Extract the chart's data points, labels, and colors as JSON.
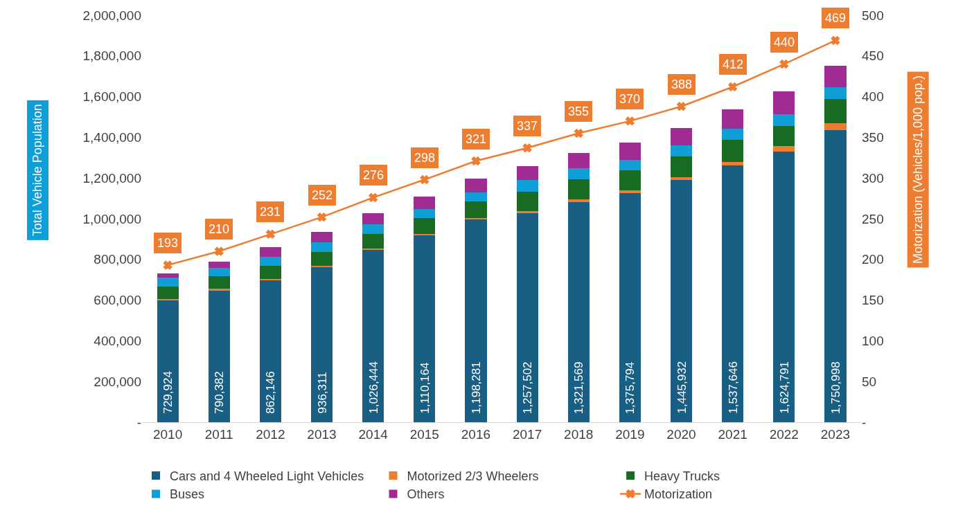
{
  "chart_data": {
    "type": "bar",
    "stacked": true,
    "ylabel": "Total Vehicle Population",
    "y2label": "Motorization (Vehicles/1,000 pop.)",
    "categories": [
      "2010",
      "2011",
      "2012",
      "2013",
      "2014",
      "2015",
      "2016",
      "2017",
      "2018",
      "2019",
      "2020",
      "2021",
      "2022",
      "2023"
    ],
    "series": [
      {
        "name": "Cars and 4 Wheeled Light Vehicles",
        "color": "#195e83",
        "values": [
          600000,
          647000,
          700000,
          763000,
          847000,
          917000,
          997000,
          1027000,
          1083000,
          1127000,
          1190000,
          1263000,
          1330000,
          1437000
        ]
      },
      {
        "name": "Motorized 2/3 Wheelers",
        "color": "#ed7d31",
        "values": [
          5000,
          8000,
          5000,
          5000,
          7000,
          8000,
          8000,
          10000,
          12000,
          13000,
          15000,
          17000,
          27000,
          33000
        ]
      },
      {
        "name": "Heavy Trucks",
        "color": "#196b24",
        "values": [
          60000,
          63000,
          63000,
          70000,
          70000,
          78000,
          80000,
          97000,
          100000,
          98000,
          100000,
          108000,
          100000,
          120000
        ]
      },
      {
        "name": "Buses",
        "color": "#0f9ed5",
        "values": [
          45000,
          40000,
          45000,
          45000,
          48000,
          45000,
          45000,
          55000,
          52000,
          52000,
          57000,
          55000,
          58000,
          57000
        ]
      },
      {
        "name": "Others",
        "color": "#a02b93",
        "values": [
          19924,
          32382,
          49146,
          53311,
          54444,
          62164,
          68281,
          68502,
          74569,
          85794,
          83932,
          94646,
          109791,
          103998
        ]
      },
      {
        "name": "Motorization",
        "type": "line",
        "axis": "y2",
        "color": "#ed7d31",
        "marker": "cross",
        "values": [
          193,
          210,
          231,
          252,
          276,
          298,
          321,
          337,
          355,
          370,
          388,
          412,
          440,
          469
        ],
        "value_labels": [
          "193",
          "210",
          "231",
          "252",
          "276",
          "298",
          "321",
          "337",
          "355",
          "370",
          "388",
          "412",
          "440",
          "469"
        ]
      }
    ],
    "totals": [
      "729,924",
      "790,382",
      "862,146",
      "936,311",
      "1,026,444",
      "1,110,164",
      "1,198,281",
      "1,257,502",
      "1,321,569",
      "1,375,794",
      "1,445,932",
      "1,537,646",
      "1,624,791",
      "1,750,998"
    ],
    "ylim": [
      0,
      2000000
    ],
    "yticks": [
      {
        "value": 0,
        "label": "-"
      },
      {
        "value": 200000,
        "label": "200,000"
      },
      {
        "value": 400000,
        "label": "400,000"
      },
      {
        "value": 600000,
        "label": "600,000"
      },
      {
        "value": 800000,
        "label": "800,000"
      },
      {
        "value": 1000000,
        "label": "1,000,000"
      },
      {
        "value": 1200000,
        "label": "1,200,000"
      },
      {
        "value": 1400000,
        "label": "1,400,000"
      },
      {
        "value": 1600000,
        "label": "1,600,000"
      },
      {
        "value": 1800000,
        "label": "1,800,000"
      },
      {
        "value": 2000000,
        "label": "2,000,000"
      }
    ],
    "y2lim": [
      0,
      500
    ],
    "y2ticks": [
      {
        "value": 0,
        "label": "-"
      },
      50,
      100,
      150,
      200,
      250,
      300,
      350,
      400,
      450,
      500
    ],
    "grid": false,
    "legend": "bottom"
  }
}
